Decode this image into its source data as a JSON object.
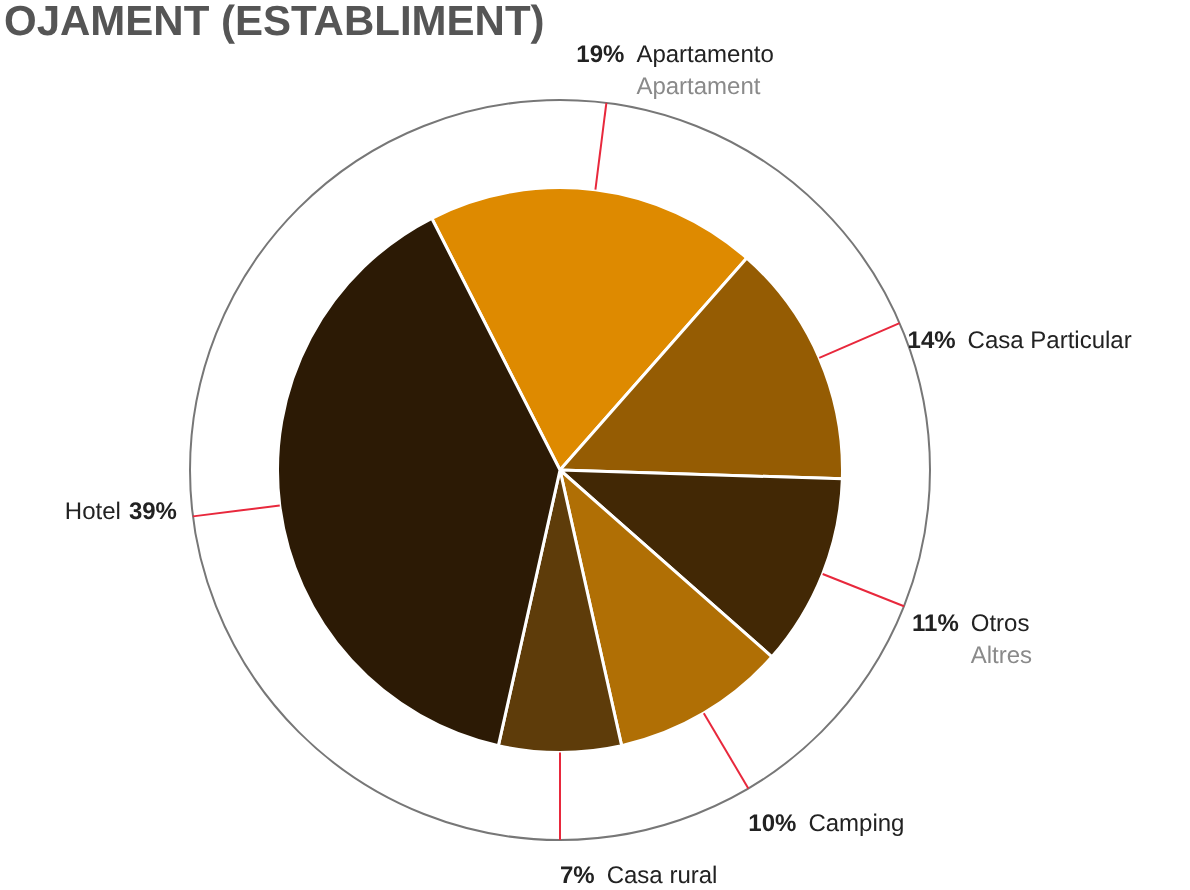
{
  "chart_data": {
    "type": "pie",
    "title": "OJAMENT (ESTABLIMENT)",
    "categories": [
      "Apartamento",
      "Casa Particular",
      "Otros",
      "Camping",
      "Casa rural",
      "Hotel"
    ],
    "values": [
      19,
      14,
      11,
      10,
      7,
      39
    ],
    "value_labels": [
      "19%",
      "14%",
      "11%",
      "10%",
      "7%",
      "39%"
    ],
    "colors": [
      "#de8a00",
      "#955c03",
      "#422805",
      "#b06f05",
      "#5e3c0a",
      "#2c1a05"
    ],
    "annotations": [
      {
        "text": "Apartament",
        "x": "Apartamento"
      },
      {
        "text": "Altres",
        "x": "Otros"
      }
    ],
    "legend": false
  }
}
